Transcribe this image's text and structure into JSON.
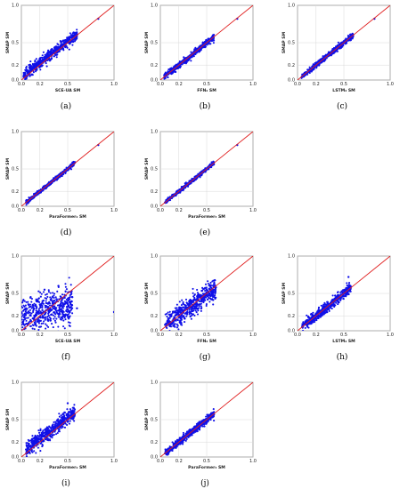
{
  "figure": {
    "domain_min": 0.0,
    "domain_max": 1.0,
    "grid": true,
    "series_color": "#1010e8",
    "identity_line_color": "#e02020",
    "identity_line": "y = x"
  },
  "chart_data": [
    {
      "type": "scatter",
      "caption": "(a)",
      "xlabel": "SCE-UA SM",
      "ylabel": "SMAP SM",
      "xlim": [
        0,
        1
      ],
      "ylim": [
        0,
        1
      ],
      "x_ticks": [
        "0.0",
        "0.2",
        "0.5",
        "1.0"
      ],
      "y_ticks": [
        "0.0",
        "0.2",
        "0.5",
        "1.0"
      ],
      "cloud": {
        "x_min": 0.02,
        "x_max": 0.6,
        "slope": 0.95,
        "intercept": 0.04,
        "spread": 0.035
      },
      "points": [
        [
          0.05,
          0.13
        ],
        [
          0.1,
          0.17
        ],
        [
          0.15,
          0.19
        ],
        [
          0.2,
          0.22
        ],
        [
          0.25,
          0.27
        ],
        [
          0.3,
          0.32
        ],
        [
          0.35,
          0.36
        ],
        [
          0.4,
          0.42
        ],
        [
          0.45,
          0.47
        ],
        [
          0.5,
          0.5
        ],
        [
          0.55,
          0.56
        ],
        [
          0.6,
          0.6
        ],
        [
          0.83,
          0.82
        ]
      ]
    },
    {
      "type": "scatter",
      "caption": "(b)",
      "xlabel": "FFN₂ SM",
      "ylabel": "SMAP SM",
      "xlim": [
        0,
        1
      ],
      "ylim": [
        0,
        1
      ],
      "x_ticks": [
        "0.0",
        "0.2",
        "0.5",
        "1.0"
      ],
      "y_ticks": [
        "0.0",
        "0.2",
        "0.5",
        "1.0"
      ],
      "cloud": {
        "x_min": 0.04,
        "x_max": 0.58,
        "slope": 1.0,
        "intercept": 0.0,
        "spread": 0.022
      },
      "points": [
        [
          0.05,
          0.05
        ],
        [
          0.1,
          0.1
        ],
        [
          0.15,
          0.15
        ],
        [
          0.2,
          0.2
        ],
        [
          0.25,
          0.25
        ],
        [
          0.3,
          0.3
        ],
        [
          0.35,
          0.35
        ],
        [
          0.4,
          0.4
        ],
        [
          0.45,
          0.45
        ],
        [
          0.5,
          0.5
        ],
        [
          0.55,
          0.55
        ],
        [
          0.83,
          0.82
        ]
      ]
    },
    {
      "type": "scatter",
      "caption": "(c)",
      "xlabel": "LSTM₂ SM",
      "ylabel": "SMAP SM",
      "xlim": [
        0,
        1
      ],
      "ylim": [
        0,
        1
      ],
      "x_ticks": [
        "0.0",
        "0.2",
        "0.5",
        "1.0"
      ],
      "y_ticks": [
        "0.0",
        "0.2",
        "0.5",
        "1.0"
      ],
      "cloud": {
        "x_min": 0.04,
        "x_max": 0.6,
        "slope": 1.0,
        "intercept": 0.0,
        "spread": 0.018
      },
      "points": [
        [
          0.05,
          0.05
        ],
        [
          0.1,
          0.1
        ],
        [
          0.15,
          0.15
        ],
        [
          0.2,
          0.2
        ],
        [
          0.25,
          0.25
        ],
        [
          0.3,
          0.3
        ],
        [
          0.35,
          0.35
        ],
        [
          0.4,
          0.4
        ],
        [
          0.45,
          0.45
        ],
        [
          0.5,
          0.5
        ],
        [
          0.55,
          0.55
        ],
        [
          0.6,
          0.6
        ],
        [
          0.83,
          0.82
        ]
      ]
    },
    {
      "type": "scatter",
      "caption": "(d)",
      "xlabel": "ParaFormer₂ SM",
      "ylabel": "SMAP SM",
      "xlim": [
        0,
        1
      ],
      "ylim": [
        0,
        1
      ],
      "x_ticks": [
        "0.0",
        "0.2",
        "0.5",
        "1.0"
      ],
      "y_ticks": [
        "0.0",
        "0.2",
        "0.5",
        "1.0"
      ],
      "cloud": {
        "x_min": 0.05,
        "x_max": 0.58,
        "slope": 1.0,
        "intercept": 0.0,
        "spread": 0.014
      },
      "points": [
        [
          0.05,
          0.05
        ],
        [
          0.1,
          0.1
        ],
        [
          0.15,
          0.15
        ],
        [
          0.2,
          0.2
        ],
        [
          0.25,
          0.25
        ],
        [
          0.3,
          0.3
        ],
        [
          0.35,
          0.35
        ],
        [
          0.4,
          0.4
        ],
        [
          0.45,
          0.45
        ],
        [
          0.5,
          0.5
        ],
        [
          0.55,
          0.55
        ],
        [
          0.83,
          0.82
        ]
      ]
    },
    {
      "type": "scatter",
      "caption": "(e)",
      "xlabel": "ParaFormer₃ SM",
      "ylabel": "SMAP SM",
      "xlim": [
        0,
        1
      ],
      "ylim": [
        0,
        1
      ],
      "x_ticks": [
        "0.0",
        "0.2",
        "0.5",
        "1.0"
      ],
      "y_ticks": [
        "0.0",
        "0.2",
        "0.5",
        "1.0"
      ],
      "cloud": {
        "x_min": 0.05,
        "x_max": 0.58,
        "slope": 1.0,
        "intercept": 0.0,
        "spread": 0.012
      },
      "points": [
        [
          0.05,
          0.05
        ],
        [
          0.1,
          0.1
        ],
        [
          0.15,
          0.15
        ],
        [
          0.2,
          0.2
        ],
        [
          0.25,
          0.25
        ],
        [
          0.3,
          0.3
        ],
        [
          0.35,
          0.35
        ],
        [
          0.4,
          0.4
        ],
        [
          0.45,
          0.45
        ],
        [
          0.5,
          0.5
        ],
        [
          0.55,
          0.55
        ],
        [
          0.83,
          0.82
        ]
      ]
    },
    {
      "type": "scatter",
      "caption": "(f)",
      "xlabel": "SCE-UA SM",
      "ylabel": "SMAP SM",
      "xlim": [
        0,
        1
      ],
      "ylim": [
        0,
        1
      ],
      "x_ticks": [
        "0.0",
        "0.2",
        "0.5",
        "1.0"
      ],
      "y_ticks": [
        "0.0",
        "0.2",
        "0.5",
        "1.0"
      ],
      "cloud": {
        "x_min": 0.0,
        "x_max": 0.55,
        "slope": 0.25,
        "intercept": 0.2,
        "spread": 0.12
      },
      "points": [
        [
          0.02,
          0.1
        ],
        [
          0.05,
          0.3
        ],
        [
          0.1,
          0.45
        ],
        [
          0.15,
          0.2
        ],
        [
          0.2,
          0.35
        ],
        [
          0.25,
          0.55
        ],
        [
          0.3,
          0.25
        ],
        [
          0.35,
          0.4
        ],
        [
          0.4,
          0.6
        ],
        [
          0.45,
          0.35
        ],
        [
          0.5,
          0.2
        ],
        [
          0.55,
          0.45
        ],
        [
          0.6,
          0.3
        ],
        [
          1.0,
          0.25
        ]
      ]
    },
    {
      "type": "scatter",
      "caption": "(g)",
      "xlabel": "FFN₂ SM",
      "ylabel": "SMAP SM",
      "xlim": [
        0,
        1
      ],
      "ylim": [
        0,
        1
      ],
      "x_ticks": [
        "0.0",
        "0.2",
        "0.5",
        "1.0"
      ],
      "y_ticks": [
        "0.0",
        "0.2",
        "0.5",
        "1.0"
      ],
      "cloud": {
        "x_min": 0.05,
        "x_max": 0.6,
        "slope": 0.9,
        "intercept": 0.03,
        "spread": 0.07
      },
      "points": [
        [
          0.05,
          0.08
        ],
        [
          0.1,
          0.12
        ],
        [
          0.15,
          0.14
        ],
        [
          0.2,
          0.2
        ],
        [
          0.25,
          0.26
        ],
        [
          0.3,
          0.3
        ],
        [
          0.35,
          0.33
        ],
        [
          0.4,
          0.42
        ],
        [
          0.45,
          0.44
        ],
        [
          0.5,
          0.5
        ],
        [
          0.55,
          0.52
        ],
        [
          0.6,
          0.58
        ]
      ]
    },
    {
      "type": "scatter",
      "caption": "(h)",
      "xlabel": "LSTM₂ SM",
      "ylabel": "SMAP SM",
      "xlim": [
        0,
        1
      ],
      "ylim": [
        0,
        1
      ],
      "x_ticks": [
        "0.0",
        "0.2",
        "0.5",
        "1.0"
      ],
      "y_ticks": [
        "0.0",
        "0.2",
        "0.5",
        "1.0"
      ],
      "cloud": {
        "x_min": 0.05,
        "x_max": 0.58,
        "slope": 1.0,
        "intercept": 0.0,
        "spread": 0.035
      },
      "points": [
        [
          0.05,
          0.06
        ],
        [
          0.1,
          0.1
        ],
        [
          0.15,
          0.15
        ],
        [
          0.2,
          0.2
        ],
        [
          0.25,
          0.25
        ],
        [
          0.3,
          0.3
        ],
        [
          0.35,
          0.35
        ],
        [
          0.4,
          0.4
        ],
        [
          0.45,
          0.45
        ],
        [
          0.5,
          0.5
        ],
        [
          0.55,
          0.55
        ],
        [
          0.55,
          0.72
        ]
      ]
    },
    {
      "type": "scatter",
      "caption": "(i)",
      "xlabel": "ParaFormer₂ SM",
      "ylabel": "SMAP SM",
      "xlim": [
        0,
        1
      ],
      "ylim": [
        0,
        1
      ],
      "x_ticks": [
        "0.0",
        "0.2",
        "0.5",
        "1.0"
      ],
      "y_ticks": [
        "0.0",
        "0.2",
        "0.5",
        "1.0"
      ],
      "cloud": {
        "x_min": 0.05,
        "x_max": 0.58,
        "slope": 0.95,
        "intercept": 0.05,
        "spread": 0.05
      },
      "points": [
        [
          0.05,
          0.1
        ],
        [
          0.1,
          0.15
        ],
        [
          0.15,
          0.19
        ],
        [
          0.2,
          0.24
        ],
        [
          0.25,
          0.28
        ],
        [
          0.3,
          0.33
        ],
        [
          0.35,
          0.38
        ],
        [
          0.4,
          0.43
        ],
        [
          0.45,
          0.47
        ],
        [
          0.5,
          0.52
        ],
        [
          0.55,
          0.58
        ],
        [
          0.5,
          0.72
        ]
      ]
    },
    {
      "type": "scatter",
      "caption": "(j)",
      "xlabel": "ParaFormer₃ SM",
      "ylabel": "SMAP SM",
      "xlim": [
        0,
        1
      ],
      "ylim": [
        0,
        1
      ],
      "x_ticks": [
        "0.0",
        "0.2",
        "0.5",
        "1.0"
      ],
      "y_ticks": [
        "0.0",
        "0.2",
        "0.5",
        "1.0"
      ],
      "cloud": {
        "x_min": 0.05,
        "x_max": 0.58,
        "slope": 1.0,
        "intercept": 0.0,
        "spread": 0.025
      },
      "points": [
        [
          0.05,
          0.05
        ],
        [
          0.1,
          0.1
        ],
        [
          0.15,
          0.15
        ],
        [
          0.2,
          0.2
        ],
        [
          0.25,
          0.25
        ],
        [
          0.3,
          0.3
        ],
        [
          0.35,
          0.35
        ],
        [
          0.4,
          0.4
        ],
        [
          0.45,
          0.45
        ],
        [
          0.5,
          0.5
        ],
        [
          0.55,
          0.55
        ]
      ]
    }
  ]
}
